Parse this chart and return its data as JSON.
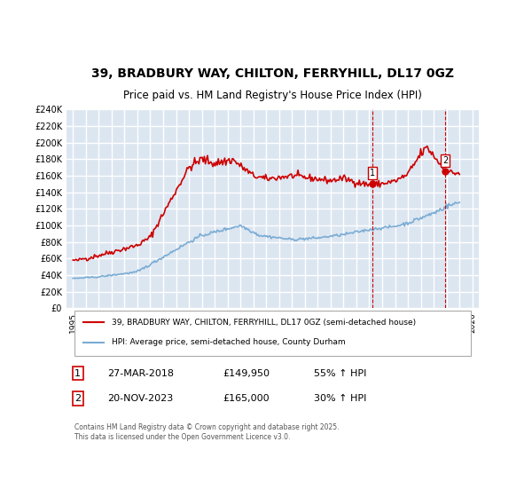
{
  "title_line1": "39, BRADBURY WAY, CHILTON, FERRYHILL, DL17 0GZ",
  "title_line2": "Price paid vs. HM Land Registry's House Price Index (HPI)",
  "ylabel": "",
  "bg_color": "#dce6f1",
  "plot_bg": "#dce6f1",
  "grid_color": "#ffffff",
  "red_color": "#cc0000",
  "blue_color": "#7aacd4",
  "marker1_x": 2018.23,
  "marker2_x": 2023.9,
  "marker1_y": 149950,
  "marker2_y": 165000,
  "marker1_label": "1",
  "marker2_label": "2",
  "legend_label_red": "39, BRADBURY WAY, CHILTON, FERRYHILL, DL17 0GZ (semi-detached house)",
  "legend_label_blue": "HPI: Average price, semi-detached house, County Durham",
  "table_row1": [
    "1",
    "27-MAR-2018",
    "£149,950",
    "55% ↑ HPI"
  ],
  "table_row2": [
    "2",
    "20-NOV-2023",
    "£165,000",
    "30% ↑ HPI"
  ],
  "footnote": "Contains HM Land Registry data © Crown copyright and database right 2025.\nThis data is licensed under the Open Government Licence v3.0.",
  "ylim": [
    0,
    240000
  ],
  "yticks": [
    0,
    20000,
    40000,
    60000,
    80000,
    100000,
    120000,
    140000,
    160000,
    180000,
    200000,
    220000,
    240000
  ],
  "xlim_start": 1994.5,
  "xlim_end": 2026.5
}
